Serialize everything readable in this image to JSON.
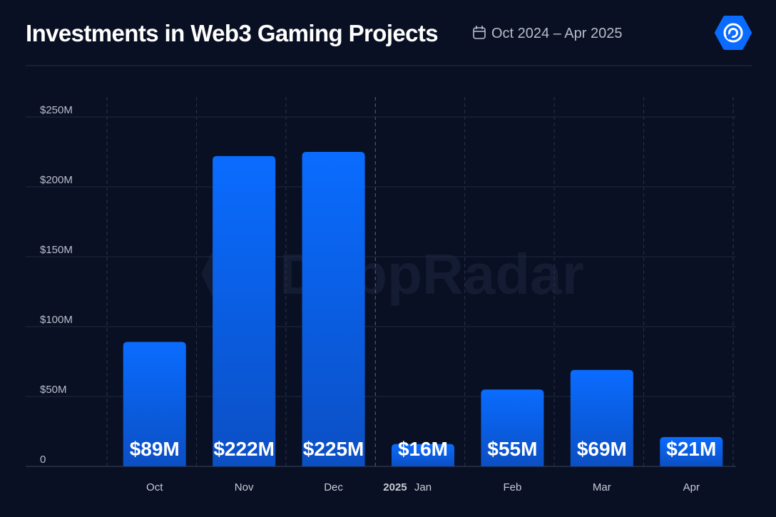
{
  "chart_data": {
    "type": "bar",
    "title": "Investments in Web3 Gaming Projects",
    "subtitle": "Oct 2024 – Apr 2025",
    "watermark": "DappRadar",
    "annotation": "2025",
    "categories": [
      "Oct",
      "Nov",
      "Dec",
      "Jan",
      "Feb",
      "Mar",
      "Apr"
    ],
    "values": [
      89,
      222,
      225,
      16,
      55,
      69,
      21
    ],
    "value_labels": [
      "$89M",
      "$222M",
      "$225M",
      "$16M",
      "$55M",
      "$69M",
      "$21M"
    ],
    "color": "#0a6cff",
    "ylim": [
      0,
      250
    ],
    "yticks": [
      0,
      {
        "value": 50,
        "label": "$50M"
      },
      {
        "value": 100,
        "label": "$100M"
      },
      {
        "value": 150,
        "label": "$150M"
      },
      {
        "value": 200,
        "label": "$200M"
      },
      {
        "value": 250,
        "label": "$250M"
      }
    ],
    "grid": true
  }
}
